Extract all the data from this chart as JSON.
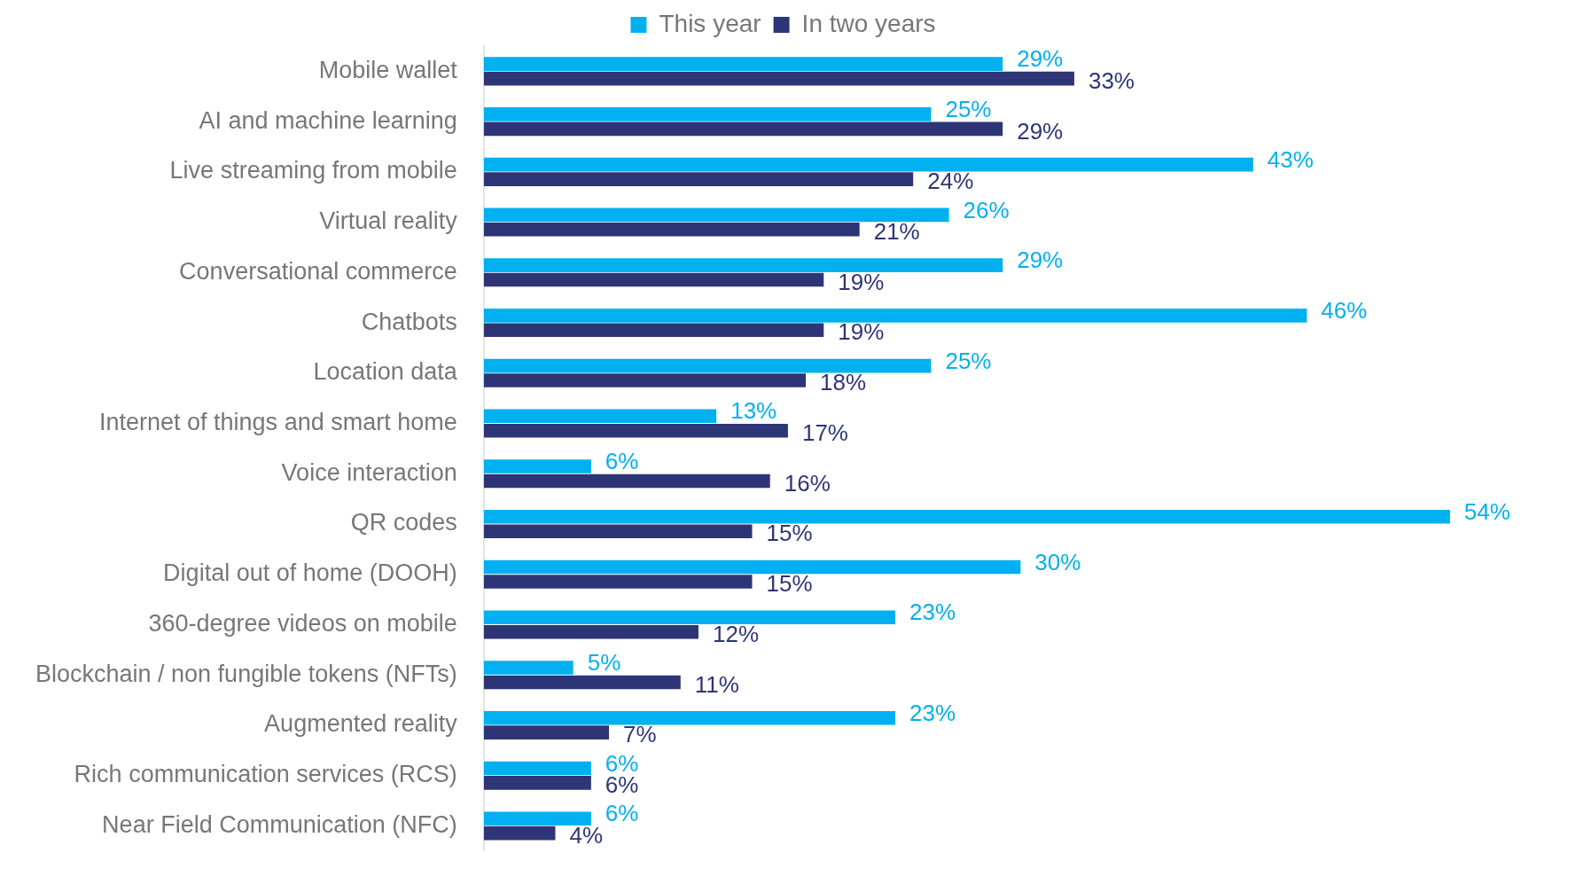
{
  "chart_data": {
    "type": "bar",
    "orientation": "horizontal",
    "categories": [
      "Mobile wallet",
      "AI and machine learning",
      "Live streaming from mobile",
      "Virtual reality",
      "Conversational commerce",
      "Chatbots",
      "Location data",
      "Internet of things and smart home",
      "Voice interaction",
      "QR codes",
      "Digital out of home (DOOH)",
      "360-degree videos on mobile",
      "Blockchain / non fungible tokens (NFTs)",
      "Augmented reality",
      "Rich communication services (RCS)",
      "Near Field Communication (NFC)"
    ],
    "series": [
      {
        "name": "This year",
        "color": "#00b0f0",
        "values": [
          29,
          25,
          43,
          26,
          29,
          46,
          25,
          13,
          6,
          54,
          30,
          23,
          5,
          23,
          6,
          6
        ],
        "value_labels": [
          "29%",
          "25%",
          "43%",
          "26%",
          "29%",
          "46%",
          "25%",
          "13%",
          "6%",
          "54%",
          "30%",
          "23%",
          "5%",
          "23%",
          "6%",
          "6%"
        ]
      },
      {
        "name": "In two years",
        "color": "#2e3577",
        "values": [
          33,
          29,
          24,
          21,
          19,
          19,
          18,
          17,
          16,
          15,
          15,
          12,
          11,
          7,
          6,
          4
        ],
        "value_labels": [
          "33%",
          "29%",
          "24%",
          "21%",
          "19%",
          "19%",
          "18%",
          "17%",
          "16%",
          "15%",
          "15%",
          "12%",
          "11%",
          "7%",
          "6%",
          "4%"
        ]
      }
    ],
    "legend": "top",
    "grid": false
  }
}
